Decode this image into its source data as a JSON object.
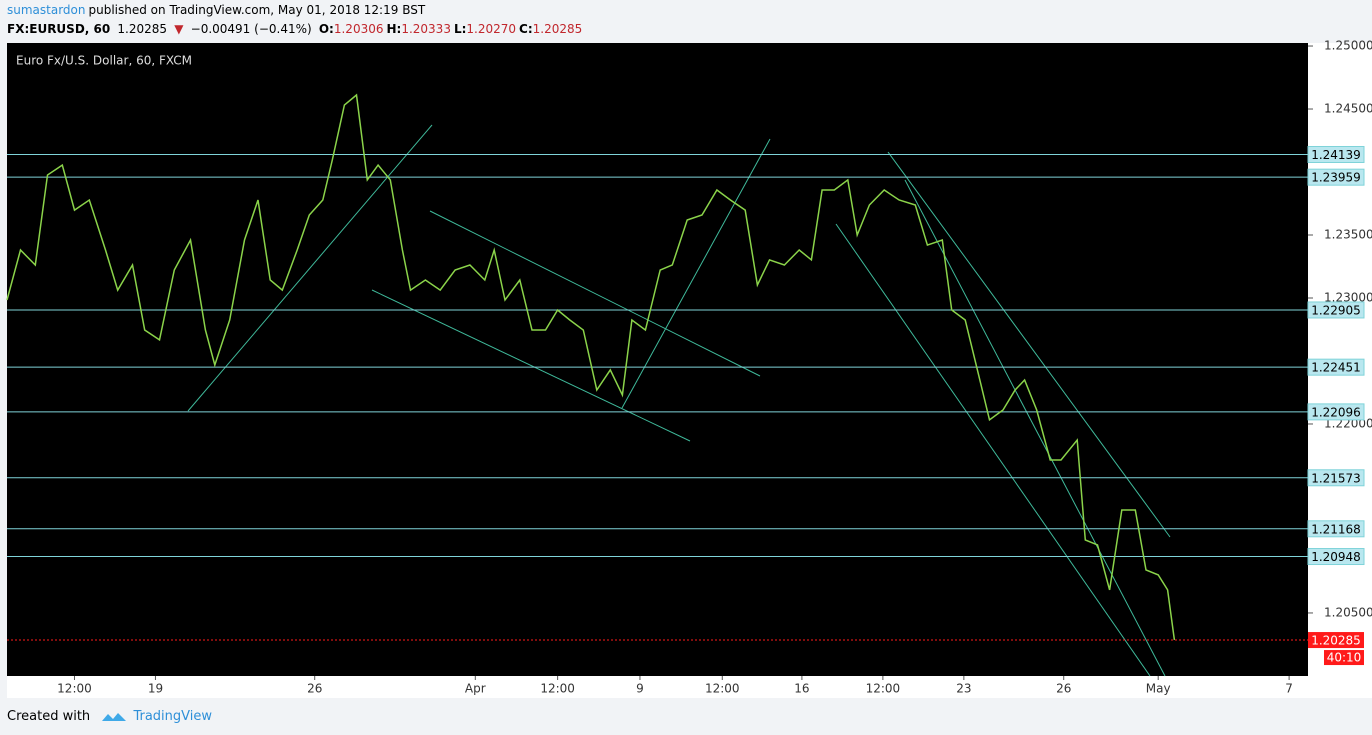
{
  "header": {
    "author": "sumastardon",
    "published": "published on TradingView.com, May 01, 2018 12:19 BST",
    "symbol": "FX:EURUSD, 60",
    "last": "1.20285",
    "change": "−0.00491 (−0.41%)",
    "ohlc": [
      {
        "label": "O:",
        "value": "1.20306"
      },
      {
        "label": "H:",
        "value": "1.20333"
      },
      {
        "label": "L:",
        "value": "1.20270"
      },
      {
        "label": "C:",
        "value": "1.20285"
      }
    ]
  },
  "footer": {
    "created": "Created with",
    "brand": "TradingView"
  },
  "chart_data": {
    "type": "line",
    "title": "Euro Fx/U.S. Dollar, 60, FXCM",
    "color": "#8bd34a",
    "x": [
      0,
      10,
      21,
      30,
      41,
      50,
      61,
      73,
      82,
      93,
      102,
      113,
      124,
      136,
      147,
      154,
      165,
      176,
      186,
      195,
      204,
      215,
      224,
      234,
      241,
      250,
      259,
      267,
      275,
      284,
      293,
      299,
      310,
      321,
      332,
      343,
      354,
      361,
      369,
      380,
      389,
      399,
      408,
      417,
      427,
      437,
      447,
      456,
      463,
      473,
      484,
      493,
      504,
      515,
      526,
      536,
      547,
      556,
      565,
      576,
      587,
      596,
      604,
      613,
      623,
      630,
      639,
      650,
      661,
      673,
      682,
      693,
      700,
      710,
      719,
      728,
      738,
      747,
      754,
      763,
      773,
      781,
      793,
      799,
      808,
      817,
      826,
      836,
      844,
      853,
      860,
      865
    ],
    "values": [
      1.22984,
      1.23381,
      1.23262,
      1.23976,
      1.24055,
      1.23698,
      1.23778,
      1.23381,
      1.23063,
      1.23262,
      1.22746,
      1.22667,
      1.23222,
      1.2346,
      1.22746,
      1.22468,
      1.22825,
      1.2346,
      1.23778,
      1.23143,
      1.23063,
      1.23381,
      1.23659,
      1.23778,
      1.24095,
      1.24532,
      1.24611,
      1.23937,
      1.24055,
      1.23937,
      1.23381,
      1.23063,
      1.23143,
      1.23063,
      1.23222,
      1.23262,
      1.23143,
      1.23381,
      1.22984,
      1.23143,
      1.22746,
      1.22746,
      1.22905,
      1.22825,
      1.22746,
      1.2227,
      1.22429,
      1.2223,
      1.22825,
      1.22746,
      1.23222,
      1.23262,
      1.23619,
      1.23659,
      1.23857,
      1.23778,
      1.23698,
      1.23103,
      1.23302,
      1.23262,
      1.23381,
      1.23302,
      1.23857,
      1.23857,
      1.23937,
      1.235,
      1.23738,
      1.23857,
      1.23778,
      1.23738,
      1.2342,
      1.2346,
      1.22905,
      1.22825,
      1.22429,
      1.22032,
      1.22111,
      1.2227,
      1.22349,
      1.22111,
      1.21714,
      1.21714,
      1.21873,
      1.21079,
      1.2104,
      1.20683,
      1.21317,
      1.21317,
      1.20841,
      1.20802,
      1.20683,
      1.20285
    ],
    "xlim": [
      0,
      964
    ],
    "ylim": [
      1.19825,
      1.25024
    ],
    "yticks": [
      {
        "value": 1.25,
        "label": "1.25000"
      },
      {
        "value": 1.245,
        "label": "1.24500"
      },
      {
        "value": 1.235,
        "label": "1.23500"
      },
      {
        "value": 1.23,
        "label": "1.23000"
      },
      {
        "value": 1.22,
        "label": "1.22000"
      },
      {
        "value": 1.205,
        "label": "1.20500"
      }
    ],
    "xticks": [
      {
        "value": 50,
        "label": "12:00"
      },
      {
        "value": 110,
        "label": "19"
      },
      {
        "value": 228,
        "label": "26"
      },
      {
        "value": 347,
        "label": "Apr"
      },
      {
        "value": 408,
        "label": "12:00"
      },
      {
        "value": 469,
        "label": "9"
      },
      {
        "value": 530,
        "label": "12:00"
      },
      {
        "value": 589,
        "label": "16"
      },
      {
        "value": 649,
        "label": "12:00"
      },
      {
        "value": 709,
        "label": "23"
      },
      {
        "value": 783,
        "label": "26"
      },
      {
        "value": 853,
        "label": "May"
      },
      {
        "value": 950,
        "label": "7"
      }
    ],
    "levels": [
      1.24139,
      1.23959,
      1.22905,
      1.22451,
      1.22096,
      1.21573,
      1.21168,
      1.20948
    ],
    "level_color": "#7fd3d9",
    "last_price": 1.20285,
    "last_color": "#ff1a1a",
    "countdown": "40:10"
  }
}
